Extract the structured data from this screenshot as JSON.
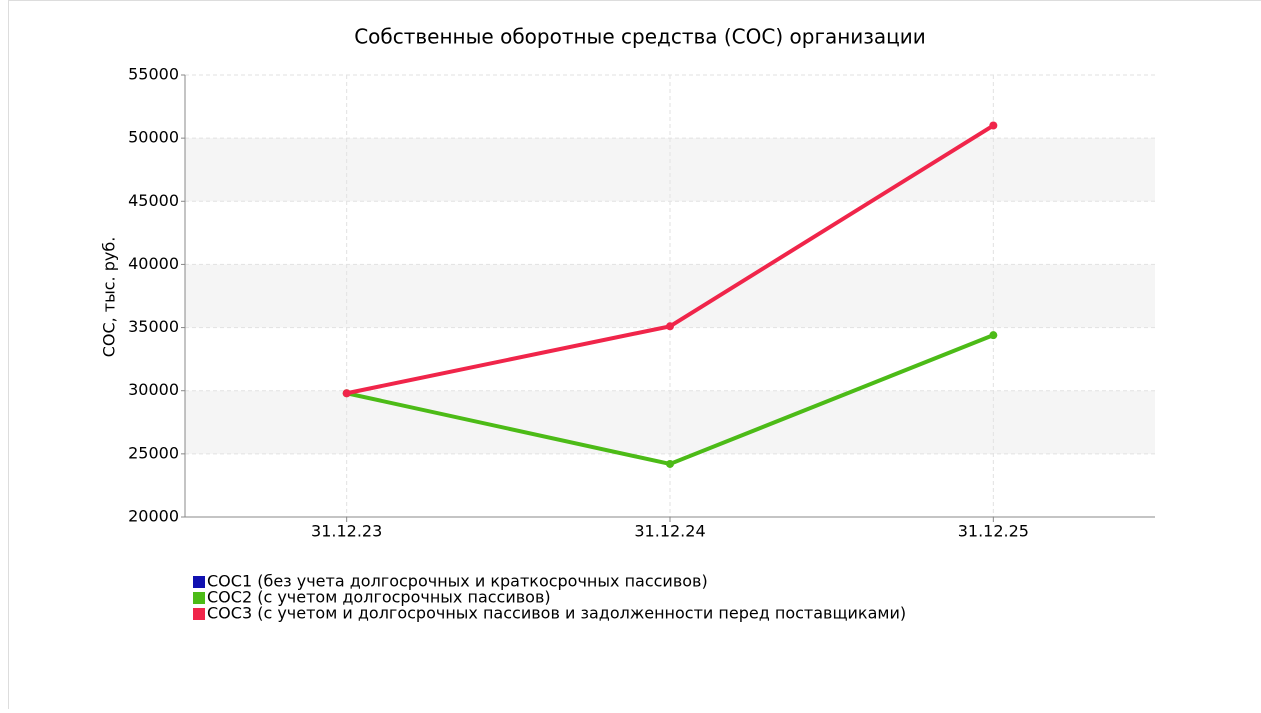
{
  "chart_data": {
    "type": "line",
    "title": "Собственные оборотные средства (СОС) организации",
    "y_label": "СОС, тыс. руб.",
    "categories": [
      "31.12.23",
      "31.12.24",
      "31.12.25"
    ],
    "series": [
      {
        "name": "СОС1 (без учета долгосрочных и краткосрочных пассивов)",
        "color": "#1010b0",
        "values": [
          null,
          null,
          null
        ]
      },
      {
        "name": "СОС2 (с учетом долгосрочных пассивов)",
        "color": "#4cbb17",
        "values": [
          29800,
          24200,
          34400
        ]
      },
      {
        "name": "СОС3 (с учетом и долгосрочных пассивов и задолженности перед поставщиками)",
        "color": "#f0254a",
        "values": [
          29800,
          35100,
          51000
        ]
      }
    ],
    "ylim": [
      20000,
      55000
    ],
    "yticks": [
      20000,
      25000,
      30000,
      35000,
      40000,
      45000,
      50000,
      55000
    ],
    "grid": true
  }
}
